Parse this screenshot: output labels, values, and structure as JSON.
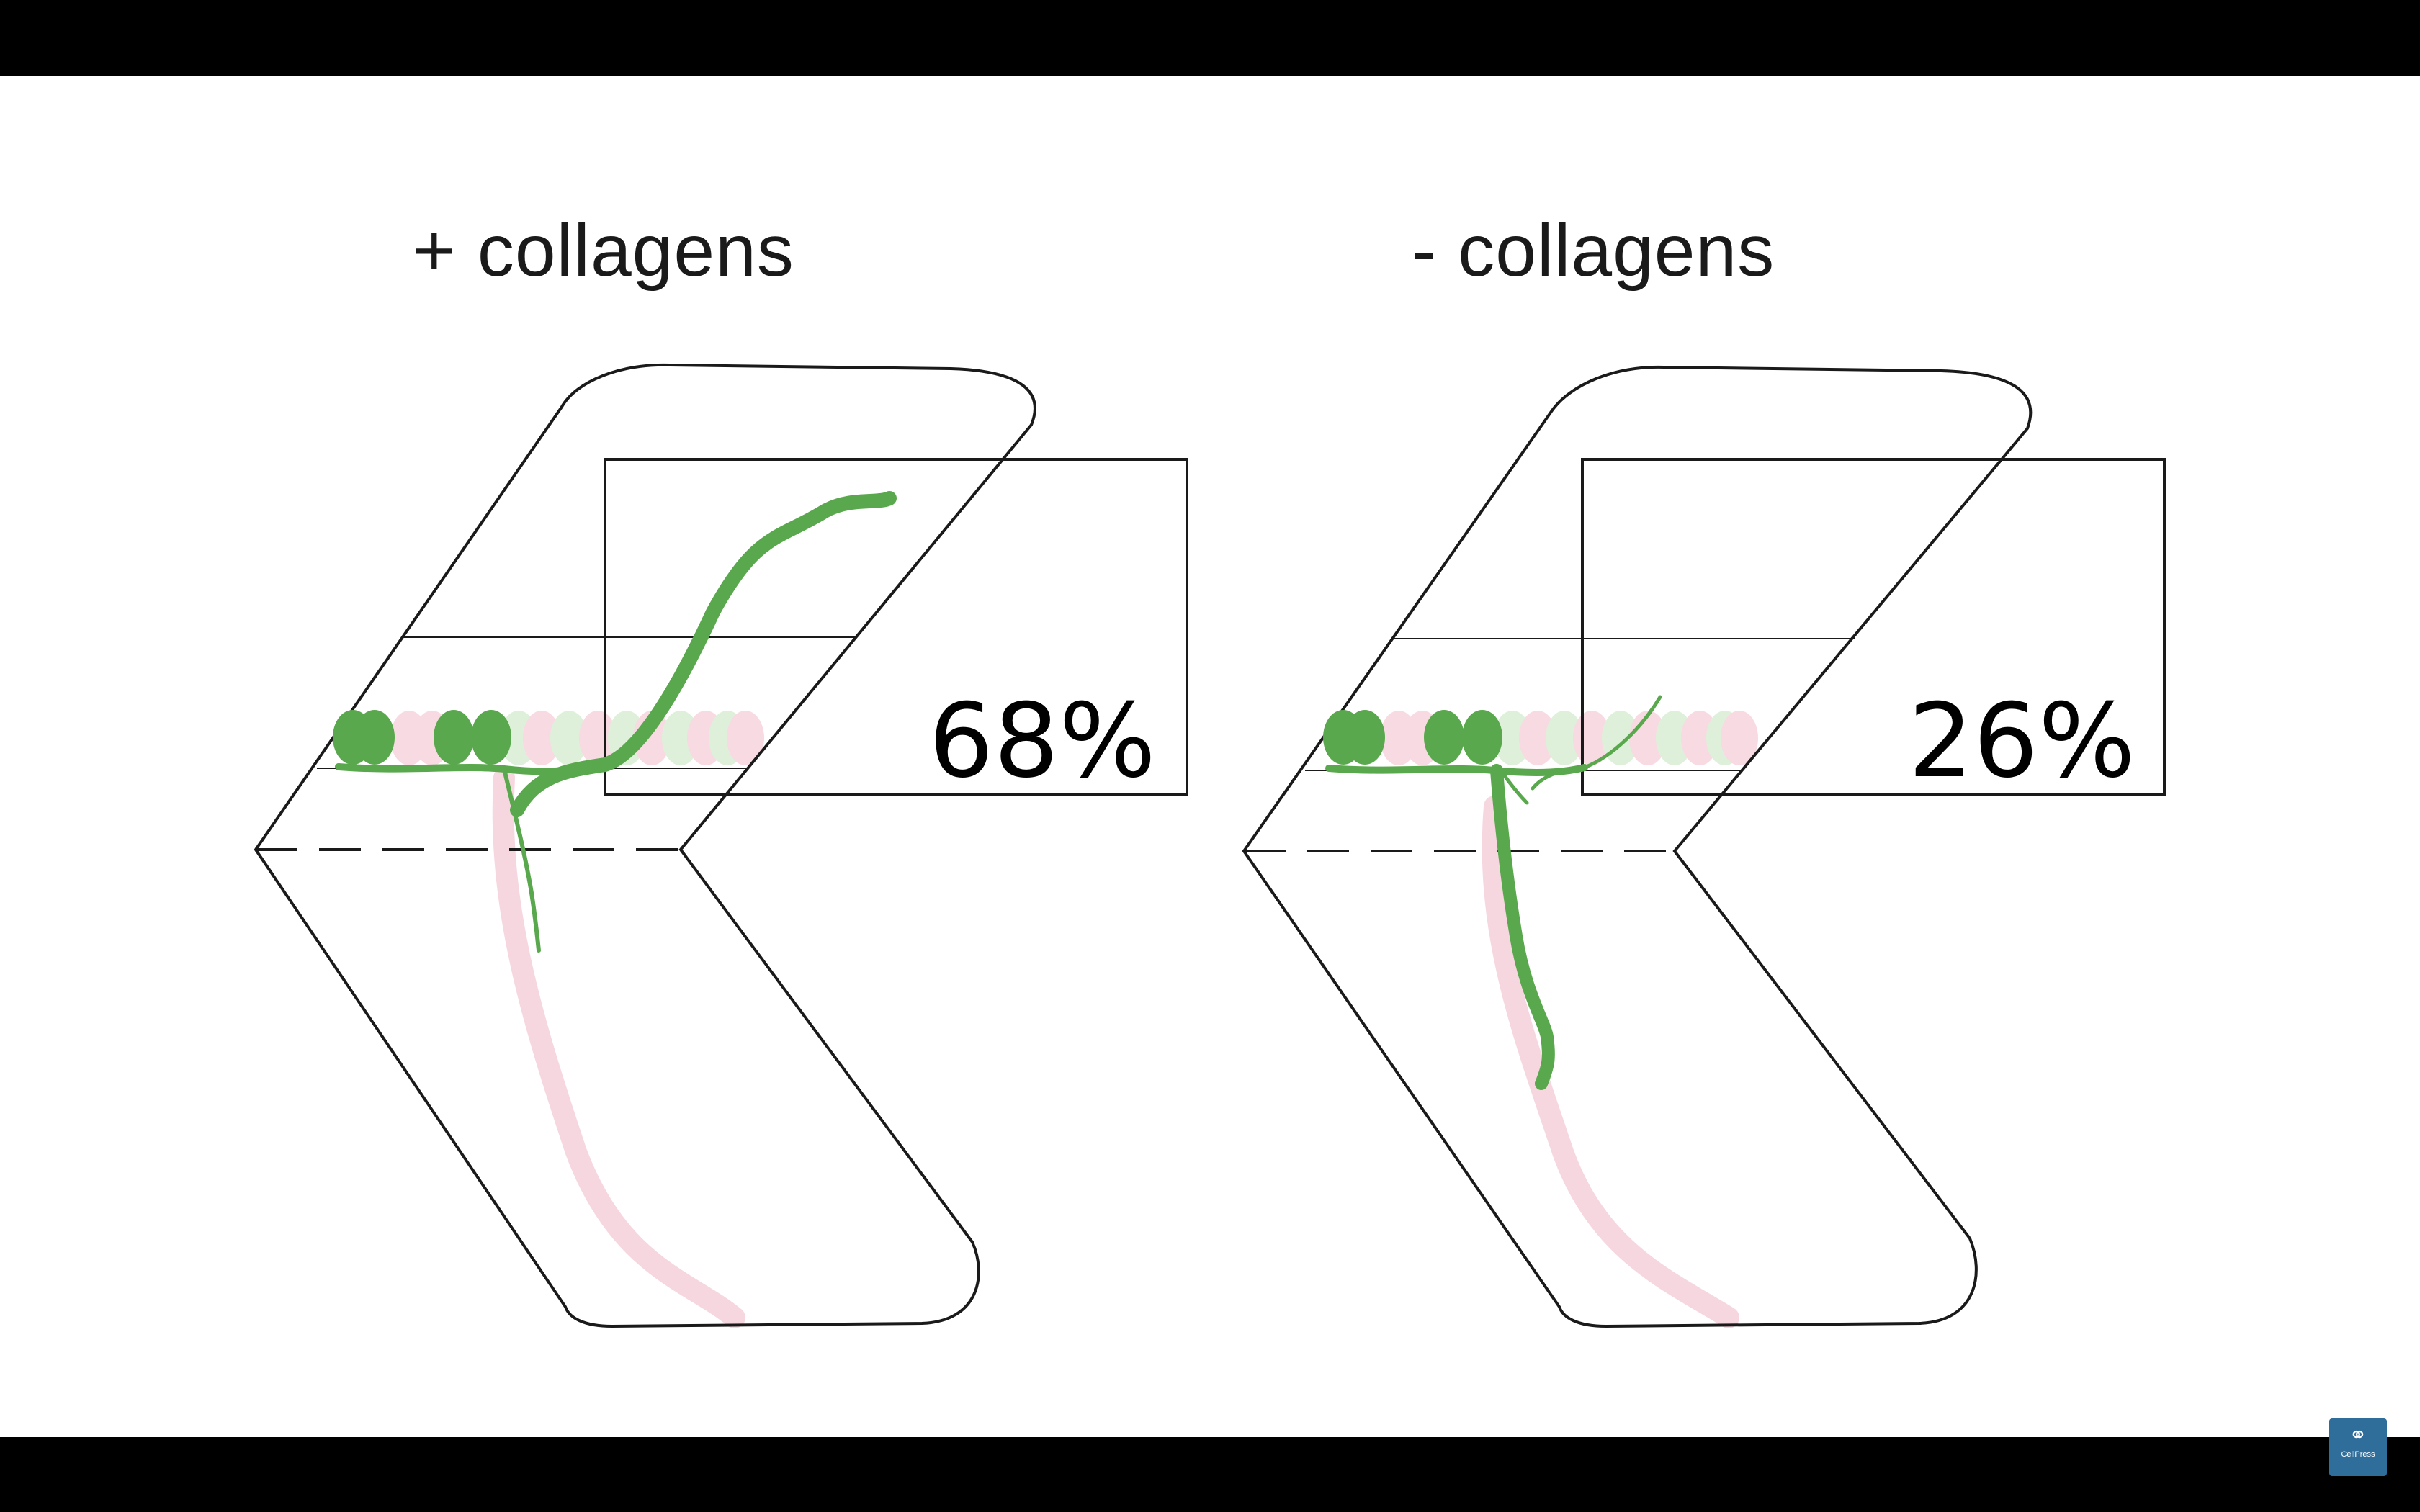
{
  "panels": [
    {
      "title": "+ collagens",
      "percent": "68%"
    },
    {
      "title": "- collagens",
      "percent": "26%"
    }
  ],
  "logo": {
    "icon": "cellpress-logo-icon",
    "text": "CellPress"
  },
  "colors": {
    "outline": "#1a1a1a",
    "neuron": "#5aa84d",
    "pink_shadow": "#f6d7e0",
    "green_shadow": "#dcefd7",
    "background": "#ffffff",
    "letterbox": "#000000",
    "logo_bg": "#2f6d9a"
  }
}
